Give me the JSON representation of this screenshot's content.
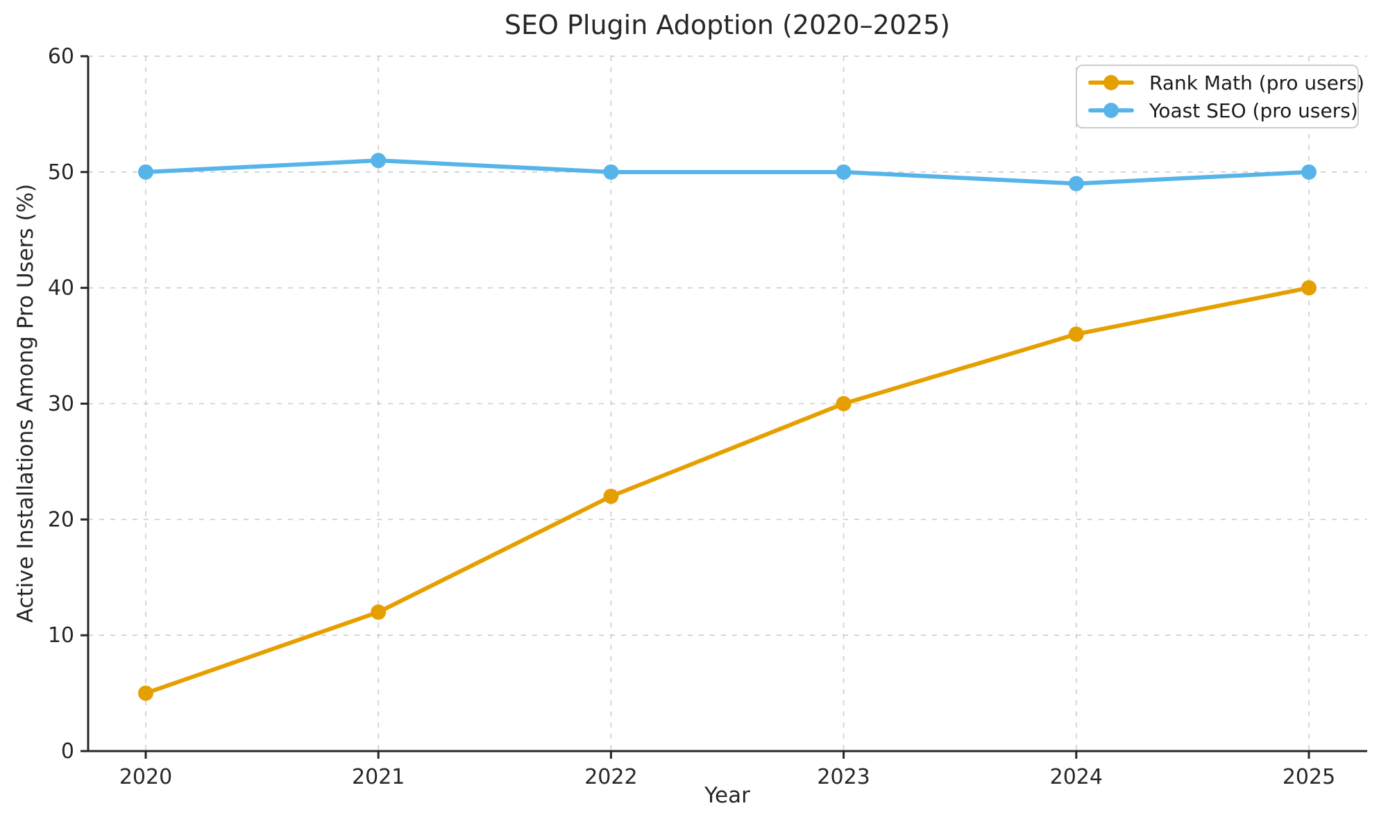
{
  "chart_data": {
    "type": "line",
    "title": "SEO Plugin Adoption (2020–2025)",
    "xlabel": "Year",
    "ylabel": "Active Installations Among Pro Users (%)",
    "x": [
      2020,
      2021,
      2022,
      2023,
      2024,
      2025
    ],
    "series": [
      {
        "name": "Rank Math (pro users)",
        "color": "#E69F00",
        "values": [
          5,
          12,
          22,
          30,
          36,
          40
        ]
      },
      {
        "name": "Yoast SEO (pro users)",
        "color": "#56B4E9",
        "values": [
          50,
          51,
          50,
          50,
          49,
          50
        ]
      }
    ],
    "ylim": [
      0,
      60
    ],
    "yticks": [
      0,
      10,
      20,
      30,
      40,
      50,
      60
    ],
    "grid": true,
    "grid_style": "dashed",
    "legend_position": "upper right",
    "palette": {
      "grid_color": "#cccccc",
      "spine_color": "#262626",
      "tick_text_color": "#262626"
    }
  }
}
